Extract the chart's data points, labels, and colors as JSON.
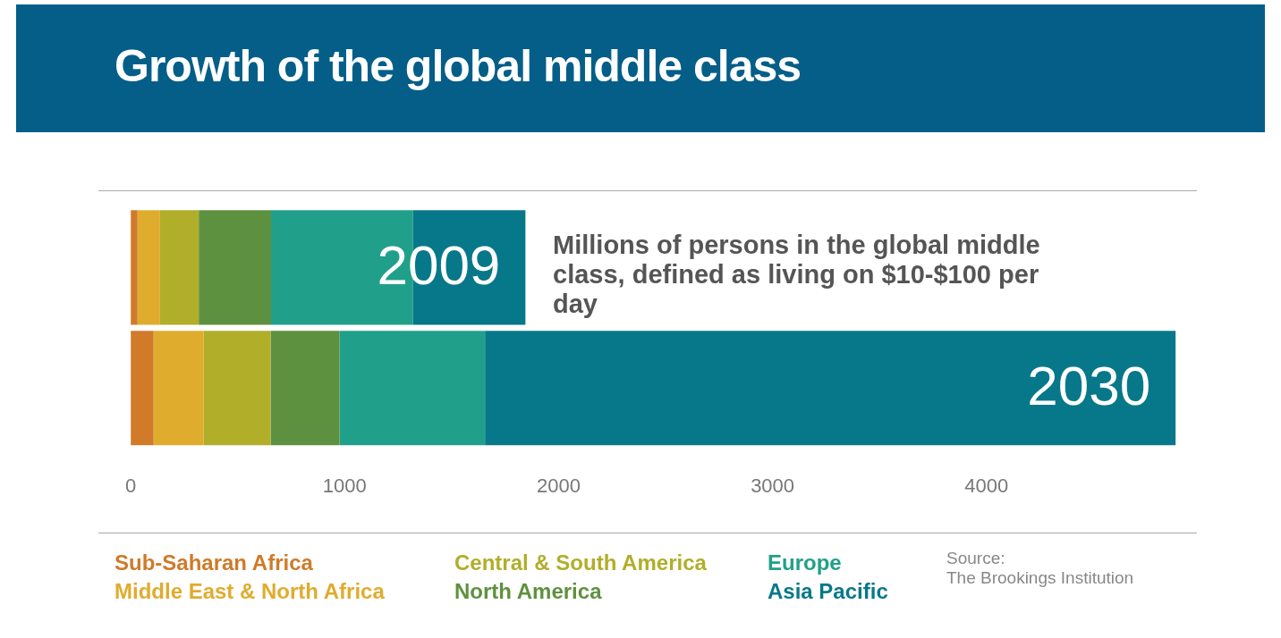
{
  "chart_data": {
    "type": "bar",
    "title": "Growth of the global middle class",
    "orientation": "horizontal",
    "stacked": true,
    "categories": [
      "2009",
      "2030"
    ],
    "series": [
      {
        "name": "Sub-Saharan Africa",
        "color": "#d07a2a",
        "values": [
          32,
          107
        ]
      },
      {
        "name": "Middle East & North Africa",
        "color": "#e0ac2e",
        "values": [
          105,
          234
        ]
      },
      {
        "name": "Central & South America",
        "color": "#b1ae2a",
        "values": [
          181,
          313
        ]
      },
      {
        "name": "North America",
        "color": "#5e913f",
        "values": [
          338,
          322
        ]
      },
      {
        "name": "Europe",
        "color": "#20a08a",
        "values": [
          664,
          680
        ]
      },
      {
        "name": "Asia Pacific",
        "color": "#077889",
        "values": [
          525,
          3228
        ]
      }
    ],
    "xlim": [
      0,
      4900
    ],
    "xticks": [
      0,
      1000,
      2000,
      3000,
      4000
    ],
    "grid": false,
    "legend": "bottom",
    "annotations": [
      "Millions of persons in the global middle class, defined as living on $10-$100 per day",
      "Source:\nThe Brookings Institution"
    ]
  }
}
